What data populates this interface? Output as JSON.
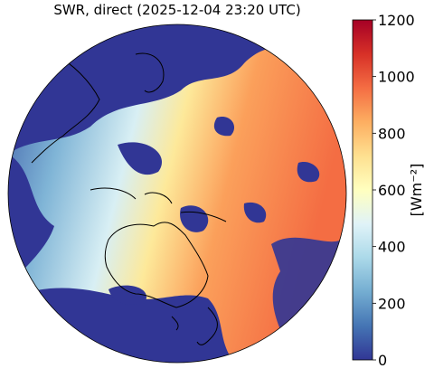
{
  "title": "SWR, direct (2025-12-04 23:20 UTC)",
  "colorbar": {
    "label": "[Wm⁻²]",
    "lim": [
      0,
      1200
    ],
    "ticks": [
      0,
      200,
      400,
      600,
      800,
      1000,
      1200
    ]
  }
}
